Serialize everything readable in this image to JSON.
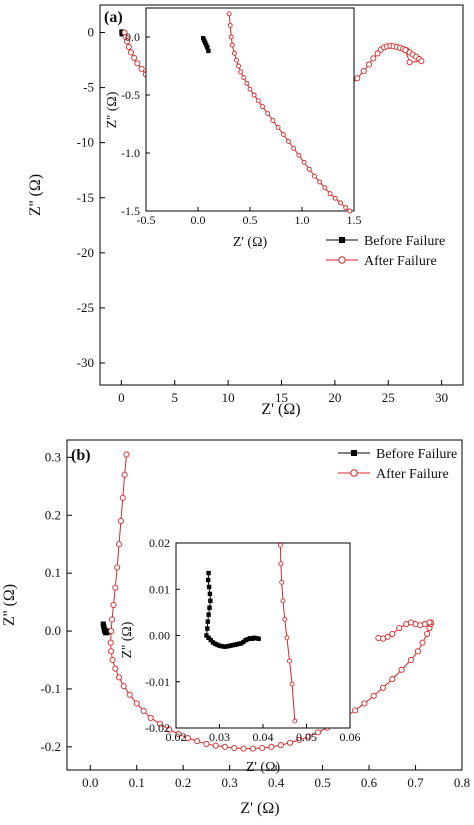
{
  "chart_data": [
    {
      "panel": "(a)",
      "type": "scatter",
      "xlabel": "Z' (Ω)",
      "ylabel": "Z'' (Ω)",
      "xlim": [
        -2,
        32
      ],
      "ylim": [
        2.5,
        -32
      ],
      "xticks": [
        0,
        5,
        10,
        15,
        20,
        25,
        30
      ],
      "yticks": [
        0,
        -5,
        -10,
        -15,
        -20,
        -25,
        -30
      ],
      "legend": "right-middle",
      "series": [
        {
          "name": "Before Failure",
          "color": "#000000",
          "marker": "square",
          "x": [
            0.05,
            0.07,
            0.08,
            0.09,
            0.1
          ],
          "y": [
            0.05,
            -0.02,
            -0.05,
            -0.08,
            -0.12
          ]
        },
        {
          "name": "After Failure",
          "color": "#d62728",
          "marker": "circle-open",
          "x": [
            0.3,
            0.4,
            0.55,
            0.7,
            0.9,
            1.2,
            1.5,
            1.9,
            2.3,
            2.8,
            3.3,
            3.9,
            4.5,
            5.2,
            5.9,
            6.6,
            7.4,
            8.2,
            9.0,
            9.8,
            10.6,
            11.4,
            12.2,
            13.0,
            13.8,
            14.6,
            15.4,
            16.2,
            17.0,
            17.8,
            18.6,
            19.4,
            20.1,
            20.8,
            21.5,
            22.1,
            22.7,
            23.2,
            23.6,
            24.0,
            24.3,
            24.6,
            24.9,
            25.2,
            25.5,
            25.8,
            26.1,
            26.4,
            26.7,
            27.0,
            27.3,
            27.6,
            27.9,
            28.1,
            27.0,
            26.6
          ],
          "y": [
            0.0,
            -0.4,
            -0.8,
            -1.3,
            -1.8,
            -2.3,
            -2.8,
            -3.3,
            -3.8,
            -4.3,
            -4.8,
            -5.3,
            -5.7,
            -6.1,
            -6.5,
            -6.9,
            -7.2,
            -7.5,
            -7.7,
            -7.9,
            -8.05,
            -8.15,
            -8.2,
            -8.2,
            -8.15,
            -8.05,
            -7.9,
            -7.7,
            -7.45,
            -7.15,
            -6.8,
            -6.4,
            -5.9,
            -5.35,
            -4.75,
            -4.15,
            -3.5,
            -2.9,
            -2.35,
            -1.9,
            -1.55,
            -1.35,
            -1.25,
            -1.2,
            -1.25,
            -1.3,
            -1.4,
            -1.5,
            -1.6,
            -1.8,
            -2.0,
            -2.2,
            -2.4,
            -2.6,
            -2.7,
            -1.6
          ]
        }
      ],
      "inset": {
        "xlabel": "Z' (Ω)",
        "ylabel": "Z'' (Ω)",
        "xlim": [
          -0.5,
          1.5
        ],
        "ylim": [
          0.25,
          -1.5
        ],
        "xticks": [
          -0.5,
          0.0,
          0.5,
          1.0,
          1.5
        ],
        "yticks": [
          0.0,
          -0.5,
          -1.0,
          -1.5
        ],
        "series": [
          {
            "name": "Before Failure",
            "color": "#000000",
            "marker": "square",
            "x": [
              0.05,
              0.06,
              0.07,
              0.08,
              0.09,
              0.1
            ],
            "y": [
              -0.01,
              -0.03,
              -0.05,
              -0.07,
              -0.09,
              -0.12
            ]
          },
          {
            "name": "After Failure",
            "color": "#d62728",
            "marker": "circle-open",
            "x": [
              0.3,
              0.31,
              0.32,
              0.33,
              0.35,
              0.37,
              0.39,
              0.41,
              0.44,
              0.47,
              0.5,
              0.54,
              0.58,
              0.62,
              0.67,
              0.72,
              0.77,
              0.82,
              0.87,
              0.92,
              0.97,
              1.02,
              1.07,
              1.12,
              1.17,
              1.22,
              1.27,
              1.32,
              1.37,
              1.42,
              1.46
            ],
            "y": [
              0.2,
              0.1,
              0.0,
              -0.07,
              -0.14,
              -0.2,
              -0.25,
              -0.3,
              -0.35,
              -0.4,
              -0.45,
              -0.5,
              -0.55,
              -0.6,
              -0.66,
              -0.72,
              -0.78,
              -0.84,
              -0.9,
              -0.96,
              -1.02,
              -1.08,
              -1.14,
              -1.2,
              -1.25,
              -1.3,
              -1.35,
              -1.39,
              -1.43,
              -1.47,
              -1.5
            ]
          }
        ]
      }
    },
    {
      "panel": "(b)",
      "type": "scatter",
      "xlabel": "Z' (Ω)",
      "ylabel": "Z'' (Ω)",
      "xlim": [
        -0.05,
        0.8
      ],
      "ylim": [
        0.33,
        -0.24
      ],
      "xticks": [
        0.0,
        0.1,
        0.2,
        0.3,
        0.4,
        0.5,
        0.6,
        0.7,
        0.8
      ],
      "yticks": [
        -0.2,
        -0.1,
        0.0,
        0.1,
        0.2,
        0.3
      ],
      "legend": "top-right",
      "series": [
        {
          "name": "Before Failure",
          "color": "#000000",
          "marker": "square",
          "x": [
            0.028,
            0.029,
            0.03,
            0.031,
            0.032,
            0.033,
            0.034,
            0.035,
            0.036,
            0.037,
            0.038,
            0.039
          ],
          "y": [
            0.012,
            0.008,
            0.004,
            0.001,
            -0.001,
            -0.002,
            -0.003,
            -0.002,
            -0.002,
            -0.001,
            0.0,
            -0.001
          ]
        },
        {
          "name": "After Failure",
          "color": "#d62728",
          "marker": "circle-open",
          "x": [
            0.078,
            0.074,
            0.07,
            0.066,
            0.062,
            0.058,
            0.054,
            0.05,
            0.047,
            0.045,
            0.044,
            0.045,
            0.048,
            0.054,
            0.062,
            0.072,
            0.085,
            0.1,
            0.115,
            0.13,
            0.15,
            0.17,
            0.19,
            0.21,
            0.23,
            0.25,
            0.27,
            0.29,
            0.31,
            0.33,
            0.35,
            0.37,
            0.39,
            0.41,
            0.43,
            0.45,
            0.47,
            0.49,
            0.51,
            0.53,
            0.55,
            0.57,
            0.59,
            0.61,
            0.63,
            0.65,
            0.67,
            0.69,
            0.705,
            0.715,
            0.725,
            0.73,
            0.733,
            0.733,
            0.73,
            0.72,
            0.71,
            0.7,
            0.69,
            0.68,
            0.665,
            0.65,
            0.64,
            0.63,
            0.62
          ],
          "y": [
            0.305,
            0.27,
            0.23,
            0.19,
            0.15,
            0.11,
            0.075,
            0.045,
            0.02,
            0.0,
            -0.02,
            -0.035,
            -0.05,
            -0.065,
            -0.08,
            -0.095,
            -0.11,
            -0.125,
            -0.138,
            -0.15,
            -0.16,
            -0.17,
            -0.178,
            -0.185,
            -0.19,
            -0.195,
            -0.198,
            -0.2,
            -0.202,
            -0.203,
            -0.203,
            -0.202,
            -0.2,
            -0.197,
            -0.193,
            -0.188,
            -0.182,
            -0.175,
            -0.167,
            -0.158,
            -0.148,
            -0.137,
            -0.125,
            -0.112,
            -0.098,
            -0.083,
            -0.067,
            -0.05,
            -0.035,
            -0.02,
            -0.005,
            0.005,
            0.012,
            0.015,
            0.015,
            0.012,
            0.01,
            0.012,
            0.015,
            0.012,
            0.005,
            -0.005,
            -0.01,
            -0.013,
            -0.012
          ]
        }
      ],
      "inset": {
        "xlabel": "Z' (Ω)",
        "ylabel": "Z'' (Ω)",
        "xlim": [
          0.02,
          0.06
        ],
        "ylim": [
          0.02,
          -0.02
        ],
        "xticks": [
          0.02,
          0.03,
          0.04,
          0.05,
          0.06
        ],
        "yticks": [
          -0.02,
          -0.01,
          0.0,
          0.01,
          0.02
        ],
        "series": [
          {
            "name": "Before Failure",
            "color": "#000000",
            "marker": "square",
            "x": [
              0.0275,
              0.0274,
              0.0276,
              0.0278,
              0.0279,
              0.0277,
              0.0275,
              0.0273,
              0.0272,
              0.027,
              0.0275,
              0.028,
              0.0285,
              0.029,
              0.0295,
              0.03,
              0.0305,
              0.031,
              0.0315,
              0.032,
              0.0325,
              0.033,
              0.0335,
              0.034,
              0.0345,
              0.035,
              0.0355,
              0.036,
              0.0365,
              0.037,
              0.0375,
              0.038,
              0.0385,
              0.039
            ],
            "y": [
              0.0135,
              0.012,
              0.0105,
              0.009,
              0.0075,
              0.006,
              0.0045,
              0.003,
              0.0015,
              0.0,
              -0.0005,
              -0.001,
              -0.0015,
              -0.0018,
              -0.002,
              -0.0022,
              -0.0023,
              -0.0024,
              -0.0024,
              -0.0023,
              -0.0022,
              -0.0021,
              -0.002,
              -0.0019,
              -0.0018,
              -0.0017,
              -0.0014,
              -0.001,
              -0.0008,
              -0.0006,
              -0.0007,
              -0.0005,
              -0.0006,
              -0.0007
            ]
          },
          {
            "name": "After Failure",
            "color": "#d62728",
            "marker": "circle-open",
            "x": [
              0.044,
              0.0441,
              0.0443,
              0.0446,
              0.045,
              0.0455,
              0.0461,
              0.0467,
              0.0473
            ],
            "y": [
              0.0195,
              0.0155,
              0.0115,
              0.0075,
              0.0035,
              -0.0005,
              -0.0055,
              -0.0105,
              -0.0185
            ]
          }
        ]
      }
    }
  ]
}
